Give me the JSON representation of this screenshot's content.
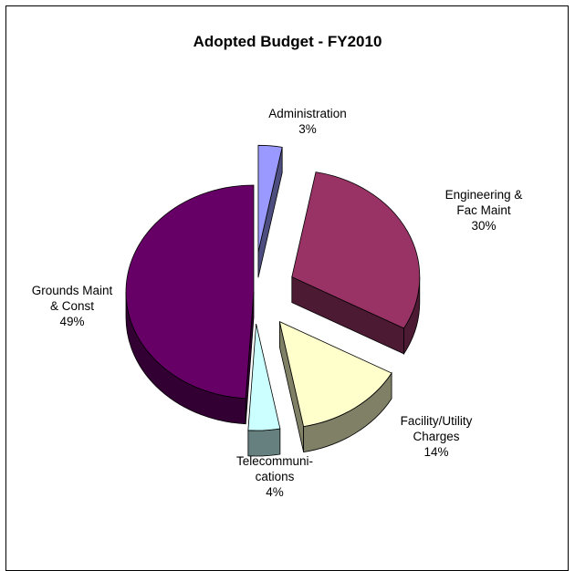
{
  "chart_data": {
    "type": "pie",
    "title": "Adopted Budget - FY2010",
    "slices": [
      {
        "label_lines": [
          "Administration"
        ],
        "percent_label": "3%",
        "value": 3,
        "color": "#9999ff",
        "side_color": "#4d4d80"
      },
      {
        "label_lines": [
          "Engineering &",
          "Fac Maint"
        ],
        "percent_label": "30%",
        "value": 30,
        "color": "#993366",
        "side_color": "#4d1a33"
      },
      {
        "label_lines": [
          "Facility/Utility",
          "Charges"
        ],
        "percent_label": "14%",
        "value": 14,
        "color": "#ffffcc",
        "side_color": "#808066"
      },
      {
        "label_lines": [
          "Telecommuni-",
          "cations"
        ],
        "percent_label": "4%",
        "value": 4,
        "color": "#ccffff",
        "side_color": "#668080"
      },
      {
        "label_lines": [
          "Grounds Maint",
          "& Const"
        ],
        "percent_label": "49%",
        "value": 49,
        "color": "#660066",
        "side_color": "#330033"
      }
    ],
    "legend": "none",
    "three_d": true
  }
}
